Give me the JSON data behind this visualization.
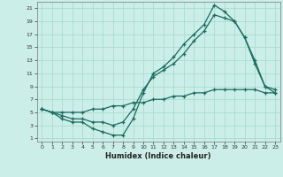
{
  "title": "",
  "xlabel": "Humidex (Indice chaleur)",
  "bg_color": "#cceee8",
  "grid_color": "#aaddcc",
  "line_color": "#1a6b60",
  "xlim": [
    -0.5,
    23.5
  ],
  "ylim": [
    0.5,
    22
  ],
  "xticks": [
    0,
    1,
    2,
    3,
    4,
    5,
    6,
    7,
    8,
    9,
    10,
    11,
    12,
    13,
    14,
    15,
    16,
    17,
    18,
    19,
    20,
    21,
    22,
    23
  ],
  "yticks": [
    1,
    3,
    5,
    7,
    9,
    11,
    13,
    15,
    17,
    19,
    21
  ],
  "series1_x": [
    0,
    1,
    2,
    3,
    4,
    5,
    6,
    7,
    8,
    9,
    10,
    11,
    12,
    13,
    14,
    15,
    16,
    17,
    18,
    19,
    20,
    21,
    22,
    23
  ],
  "series1_y": [
    5.5,
    5.0,
    4.0,
    3.5,
    3.5,
    2.5,
    2.0,
    1.5,
    1.5,
    4.0,
    8.0,
    11.0,
    12.0,
    13.5,
    15.5,
    17.0,
    18.5,
    21.5,
    20.5,
    19.0,
    16.5,
    13.0,
    9.0,
    8.5
  ],
  "series2_x": [
    0,
    1,
    2,
    3,
    4,
    5,
    6,
    7,
    8,
    9,
    10,
    11,
    12,
    13,
    14,
    15,
    16,
    17,
    18,
    19,
    20,
    21,
    22,
    23
  ],
  "series2_y": [
    5.5,
    5.0,
    4.5,
    4.0,
    4.0,
    3.5,
    3.5,
    3.0,
    3.5,
    5.5,
    8.5,
    10.5,
    11.5,
    12.5,
    14.0,
    16.0,
    17.5,
    20.0,
    19.5,
    19.0,
    16.5,
    12.5,
    9.0,
    8.0
  ],
  "series3_x": [
    0,
    1,
    2,
    3,
    4,
    5,
    6,
    7,
    8,
    9,
    10,
    11,
    12,
    13,
    14,
    15,
    16,
    17,
    18,
    19,
    20,
    21,
    22,
    23
  ],
  "series3_y": [
    5.5,
    5.0,
    5.0,
    5.0,
    5.0,
    5.5,
    5.5,
    6.0,
    6.0,
    6.5,
    6.5,
    7.0,
    7.0,
    7.5,
    7.5,
    8.0,
    8.0,
    8.5,
    8.5,
    8.5,
    8.5,
    8.5,
    8.0,
    8.0
  ],
  "xlabel_fontsize": 6,
  "tick_fontsize": 4.5,
  "lw": 0.9,
  "ms": 3.0
}
